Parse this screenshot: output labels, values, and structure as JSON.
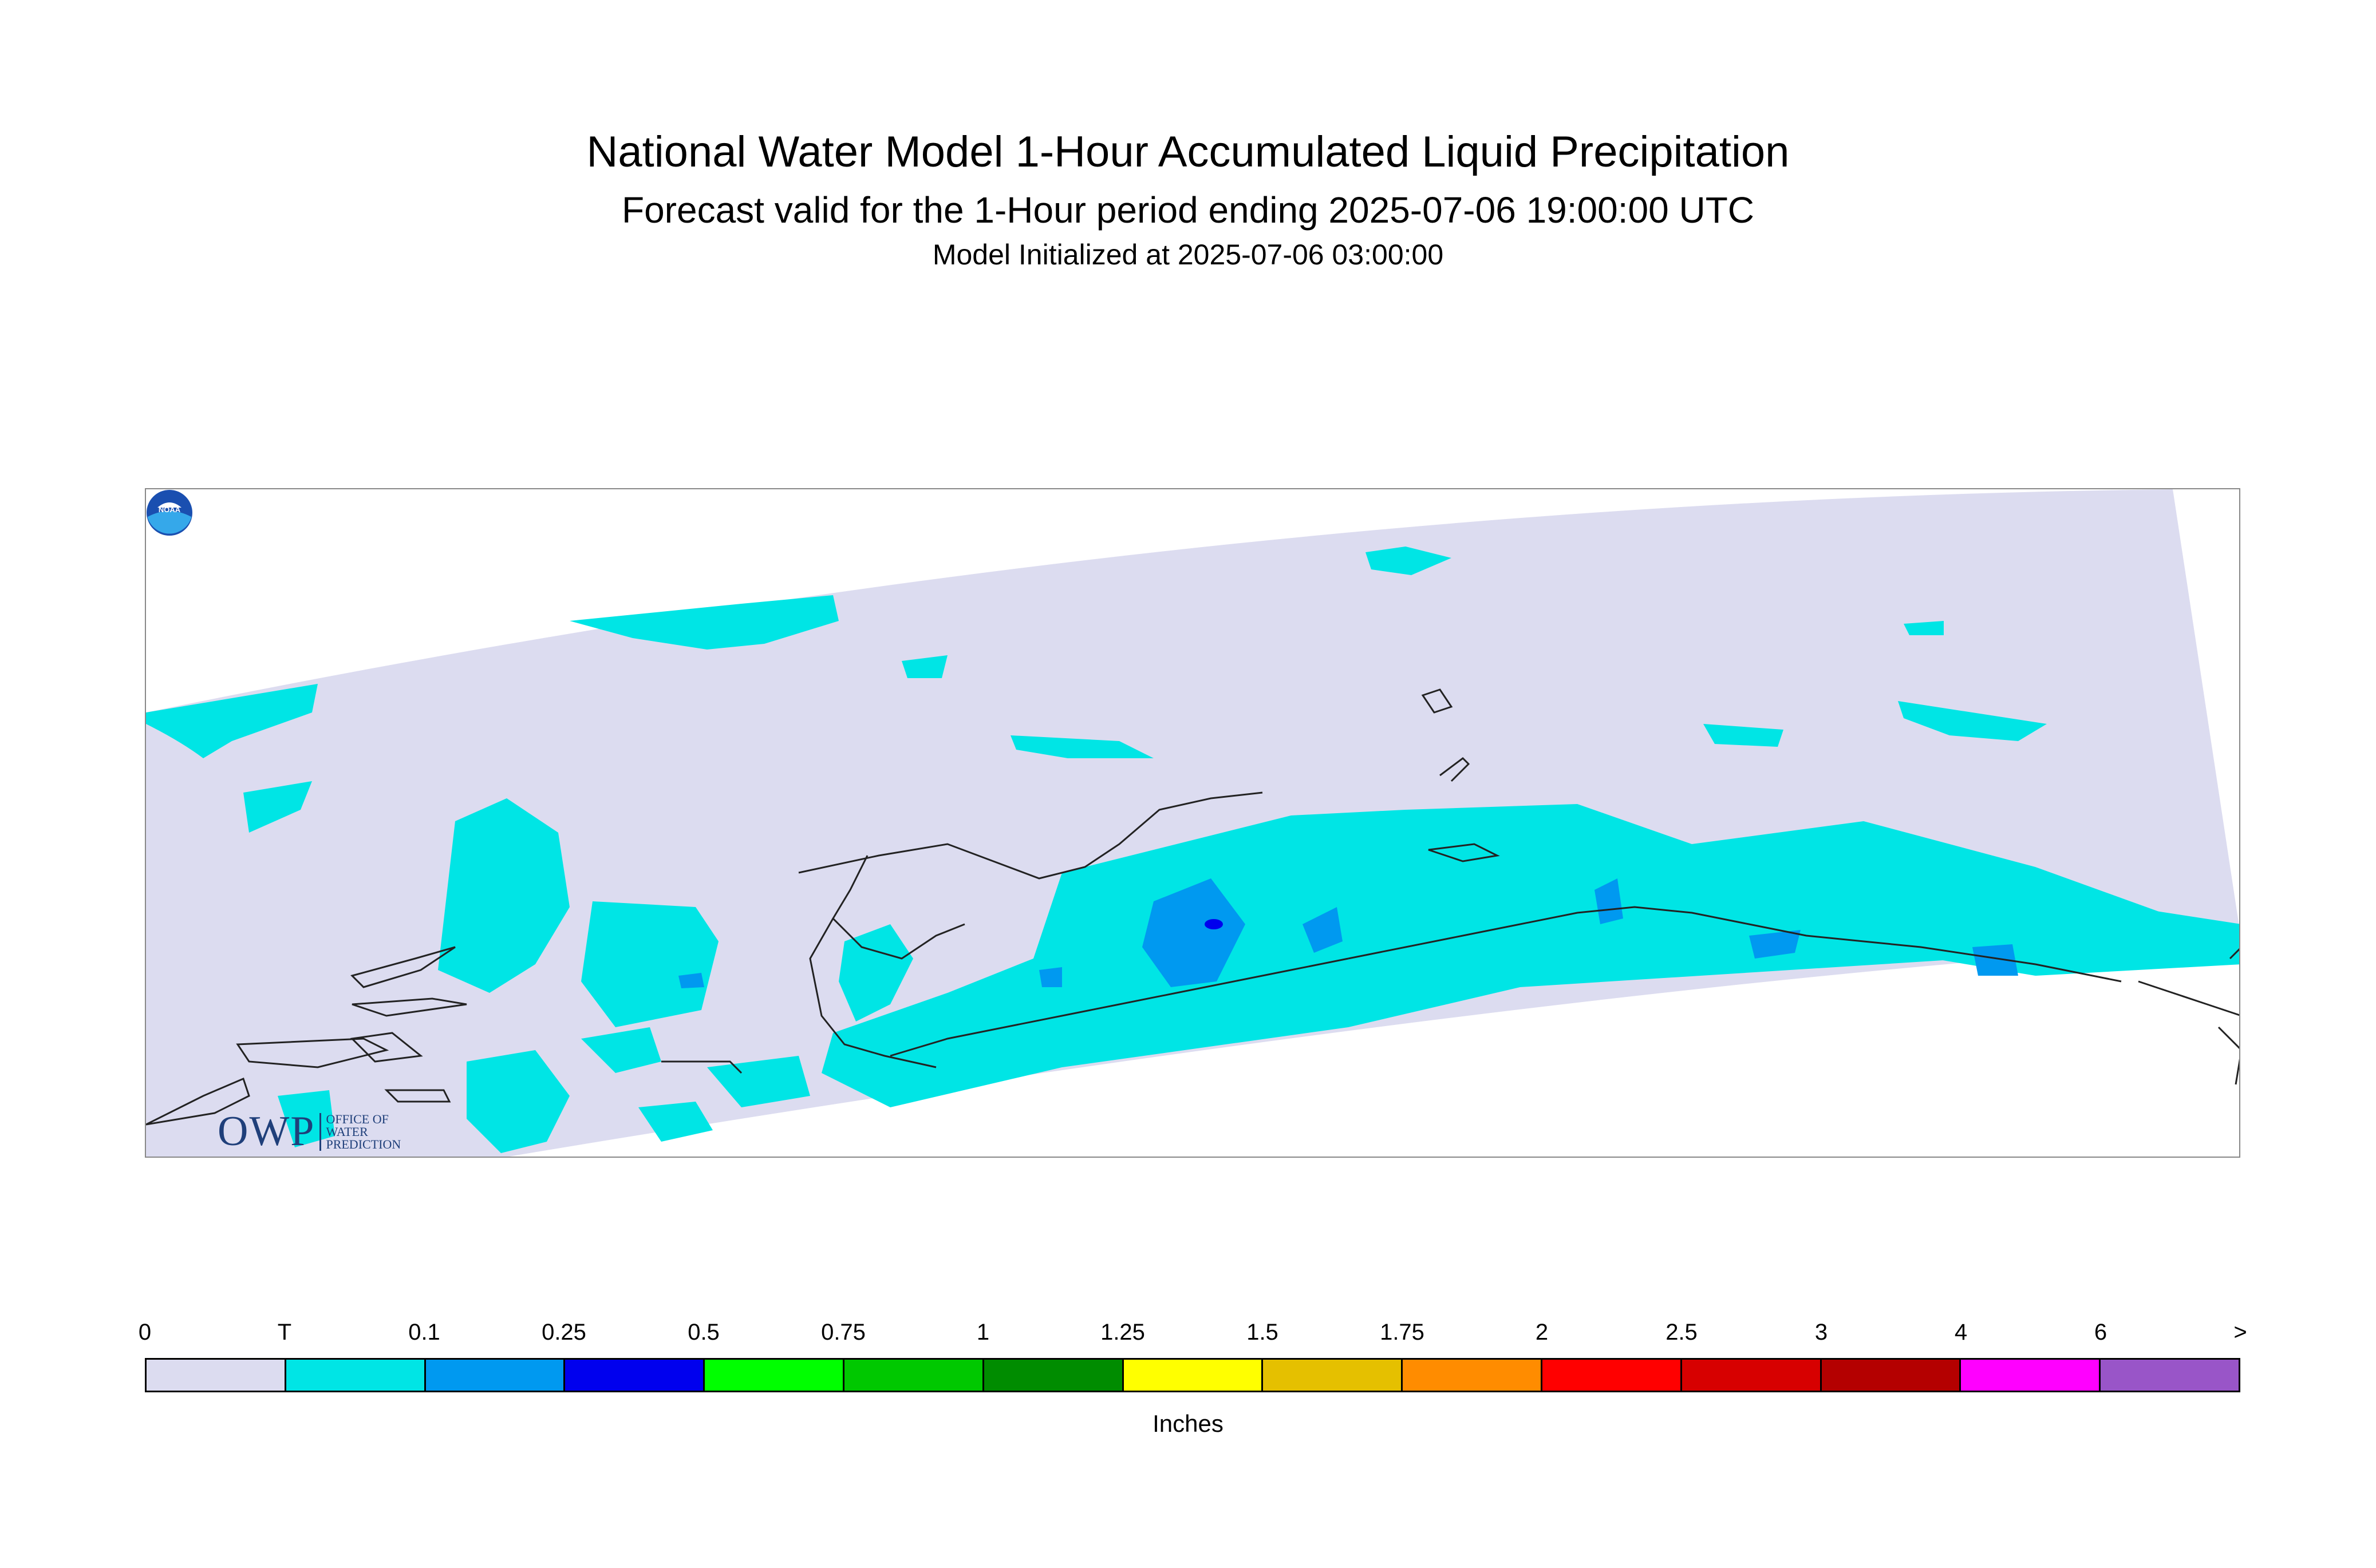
{
  "title": "National Water Model 1-Hour Accumulated Liquid Precipitation",
  "subtitle": "Forecast valid for the 1-Hour period ending 2025-07-06 19:00:00 UTC",
  "init_line": "Model Initialized at 2025-07-06 03:00:00",
  "logo": {
    "main": "OWP",
    "line1": "OFFICE OF",
    "line2": "WATER",
    "line3": "PREDICTION"
  },
  "noaa_label": "NOAA",
  "colorbar": {
    "units": "Inches",
    "ticks": [
      "0",
      "T",
      "0.1",
      "0.25",
      "0.5",
      "0.75",
      "1",
      "1.25",
      "1.5",
      "1.75",
      "2",
      "2.5",
      "3",
      "4",
      "6",
      ">"
    ],
    "colors": [
      "#dcdcf0",
      "#00e5e5",
      "#0099f0",
      "#0000ee",
      "#00ff00",
      "#00c800",
      "#008c00",
      "#ffff00",
      "#e5c000",
      "#ff8c00",
      "#ff0000",
      "#d70000",
      "#b40000",
      "#ff00ff",
      "#9955c8"
    ]
  },
  "map": {
    "domain_color": "#dcdcf0",
    "trace_color": "#00e5e5",
    "light_color": "#0099f0",
    "heavy_color": "#0000ee",
    "coast_color": "#222222"
  }
}
